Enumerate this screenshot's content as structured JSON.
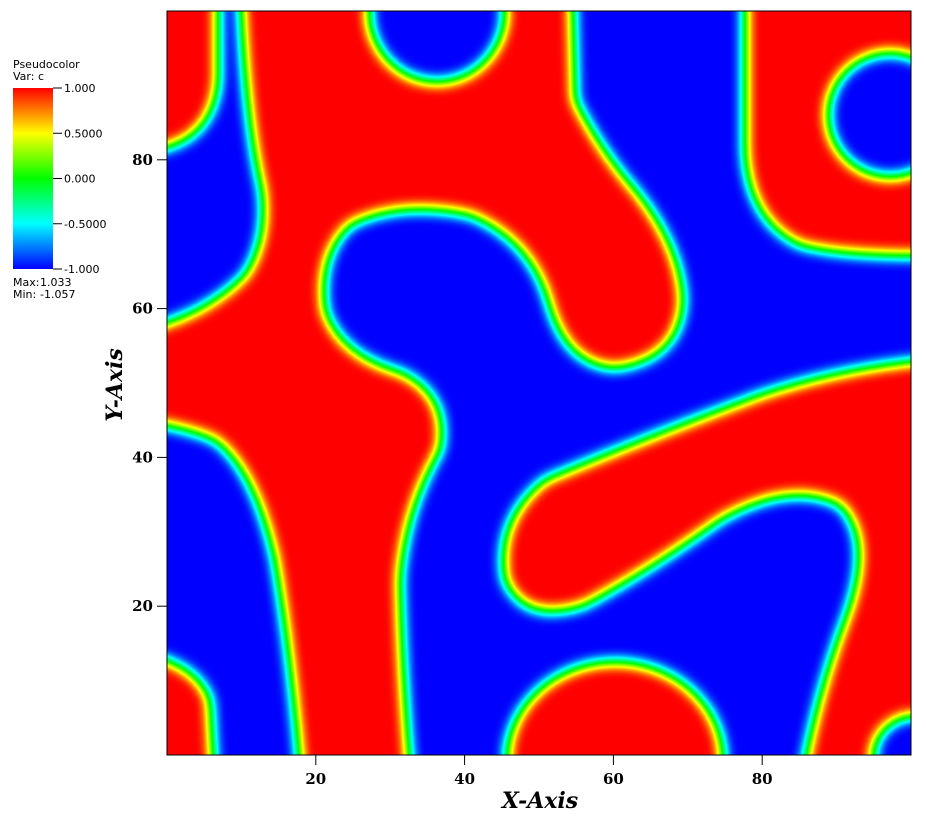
{
  "chart_data": {
    "type": "pseudocolor",
    "title": "Pseudocolor",
    "variable": "Var: c",
    "xlabel": "X-Axis",
    "ylabel": "Y-Axis",
    "xlim": [
      0,
      100
    ],
    "ylim": [
      0,
      100
    ],
    "xticks": [
      20,
      40,
      60,
      80
    ],
    "yticks": [
      20,
      40,
      60,
      80
    ],
    "colorbar": {
      "clim": [
        -1,
        1
      ],
      "ticks": [
        {
          "value": 1,
          "label": "1.000"
        },
        {
          "value": 0.5,
          "label": "0.5000"
        },
        {
          "value": 0,
          "label": "0.000"
        },
        {
          "value": -0.5,
          "label": "-0.5000"
        },
        {
          "value": -1,
          "label": "-1.000"
        }
      ],
      "colors": [
        "#0000ff",
        "#00ffff",
        "#00ff00",
        "#ffff00",
        "#ff0000"
      ]
    },
    "max_label": "Max:",
    "max": 1.033,
    "min_label": "Min:",
    "min": -1.057
  }
}
